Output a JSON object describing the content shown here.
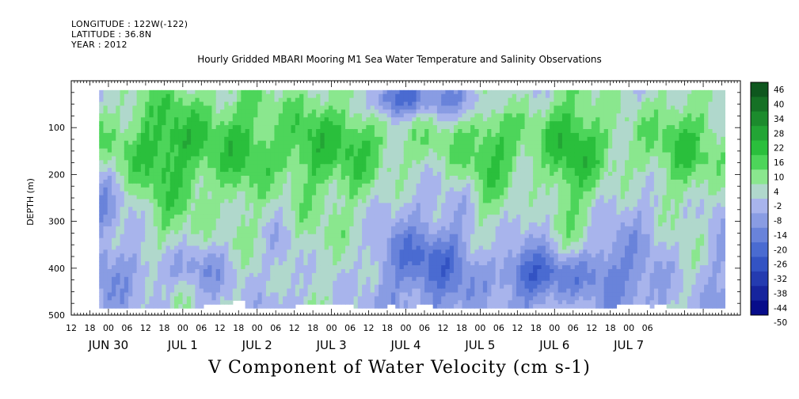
{
  "header": {
    "longitude": "LONGITUDE : 122W(-122)",
    "latitude": "LATITUDE : 36.8N",
    "year": "YEAR : 2012"
  },
  "title": "Hourly Gridded MBARI Mooring M1 Sea Water Temperature and Salinity Observations",
  "variable_label": "V Component of Water Velocity (cm s-1)",
  "chart_data": {
    "type": "heatmap",
    "title": "Hourly Gridded MBARI Mooring M1 Sea Water Temperature and Salinity Observations",
    "ylabel": "DEPTH (m)",
    "xlabel": "",
    "y_reversed": true,
    "ylim": [
      0,
      500
    ],
    "y_ticks": [
      100,
      200,
      300,
      400,
      500
    ],
    "x_range_hours": [
      -12,
      204
    ],
    "x_start": "JUN 30 2012 00:00",
    "x_hour_labels": [
      "12",
      "18",
      "00",
      "06",
      "12",
      "18",
      "00",
      "06",
      "12",
      "18",
      "00",
      "06",
      "12",
      "18",
      "00",
      "06",
      "12",
      "18",
      "00",
      "06",
      "12",
      "18",
      "00",
      "06",
      "12",
      "18",
      "00",
      "06",
      "12",
      "18",
      "00",
      "06"
    ],
    "x_day_labels": [
      "JUN 30",
      "JUL  1",
      "JUL  2",
      "JUL  3",
      "JUL  4",
      "JUL  5",
      "JUL  6",
      "JUL  7"
    ],
    "data_time_range_hours": [
      -3,
      199
    ],
    "data_depth_range_m": [
      20,
      485
    ],
    "colorbar": {
      "levels": [
        -50,
        -44,
        -38,
        -32,
        -26,
        -20,
        -14,
        -8,
        -2,
        4,
        10,
        16,
        22,
        28,
        34,
        40,
        46
      ],
      "tick_labels": [
        "46",
        "40",
        "34",
        "28",
        "22",
        "16",
        "10",
        "4",
        "-2",
        "-8",
        "-14",
        "-20",
        "-26",
        "-32",
        "-38",
        "-44",
        "-50"
      ]
    },
    "colors": {
      "negative_dark": "#000080",
      "negative_mid": "#3a5fcd",
      "negative_light": "#b8c0f0",
      "positive_light": "#a8f0a8",
      "positive_mid": "#2ecc40",
      "positive_dark": "#0a4a1a"
    },
    "pattern": "Predominantly green (positive, 4 to 22 cm/s) in the upper 20-250 m and blue/purple (negative, -2 to -26 cm/s) below 250 m, with vertical streaks of green extending to depth on Jun 30 18:00, Jul 1 18:00, Jul 3 06:00, Jul 4 12:00, Jul 5 06:00 and Jul 6 18:00; strongest negative (-32) near 420 m on Jul 5 12:00; white gaps near 480 m."
  }
}
